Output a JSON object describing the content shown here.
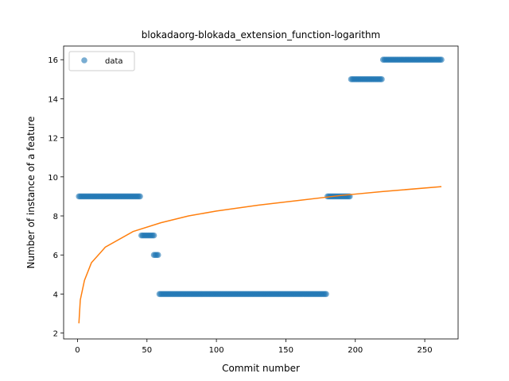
{
  "chart_data": {
    "type": "scatter",
    "title": "blokadaorg-blokada_extension_function-logarithm",
    "xlabel": "Commit number",
    "ylabel": "Number of instance of a feature",
    "xlim": [
      -10,
      274
    ],
    "ylim": [
      1.7,
      16.7
    ],
    "xticks": [
      0,
      50,
      100,
      150,
      200,
      250
    ],
    "yticks": [
      2,
      4,
      6,
      8,
      10,
      12,
      14,
      16
    ],
    "grid": false,
    "legend_position": "upper-left",
    "colors": {
      "data": "#1f77b4",
      "fit": "#ff7f0e"
    },
    "series": [
      {
        "name": "data",
        "kind": "scatter",
        "segments": [
          {
            "x_start": 1,
            "x_end": 45,
            "y": 9
          },
          {
            "x_start": 46,
            "x_end": 55,
            "y": 7
          },
          {
            "x_start": 55,
            "x_end": 58,
            "y": 6
          },
          {
            "x_start": 59,
            "x_end": 179,
            "y": 4
          },
          {
            "x_start": 180,
            "x_end": 196,
            "y": 9
          },
          {
            "x_start": 197,
            "x_end": 219,
            "y": 15
          },
          {
            "x_start": 220,
            "x_end": 262,
            "y": 16
          }
        ]
      },
      {
        "kind": "line",
        "function": "logarithm",
        "points": [
          [
            1,
            2.5
          ],
          [
            2,
            3.7
          ],
          [
            5,
            4.7
          ],
          [
            10,
            5.6
          ],
          [
            20,
            6.4
          ],
          [
            40,
            7.2
          ],
          [
            60,
            7.65
          ],
          [
            80,
            8.0
          ],
          [
            100,
            8.25
          ],
          [
            130,
            8.55
          ],
          [
            160,
            8.8
          ],
          [
            190,
            9.05
          ],
          [
            220,
            9.25
          ],
          [
            262,
            9.5
          ]
        ]
      }
    ]
  }
}
